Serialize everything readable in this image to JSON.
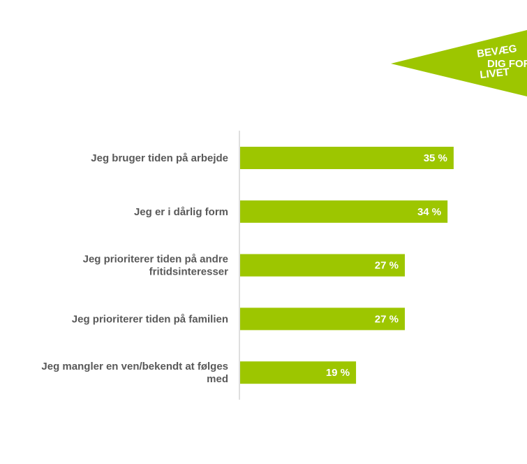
{
  "logo": {
    "lines": [
      "BEVÆG",
      "DIG FOR",
      "LIVET"
    ],
    "color": "#9dc600"
  },
  "chart_data": {
    "type": "bar",
    "orientation": "horizontal",
    "categories": [
      [
        "Jeg bruger tiden på arbejde"
      ],
      [
        "Jeg er i dårlig form"
      ],
      [
        "Jeg prioriterer tiden på andre",
        "fritidsinteresser"
      ],
      [
        "Jeg prioriterer tiden på familien"
      ],
      [
        "Jeg mangler en ven/bekendt at følges",
        "med"
      ]
    ],
    "values": [
      35,
      34,
      27,
      27,
      19
    ],
    "data_labels": [
      "35 %",
      "34 %",
      "27 %",
      "27 %",
      "19 %"
    ],
    "unit": "%",
    "bar_color": "#9dc600",
    "grid": false
  }
}
